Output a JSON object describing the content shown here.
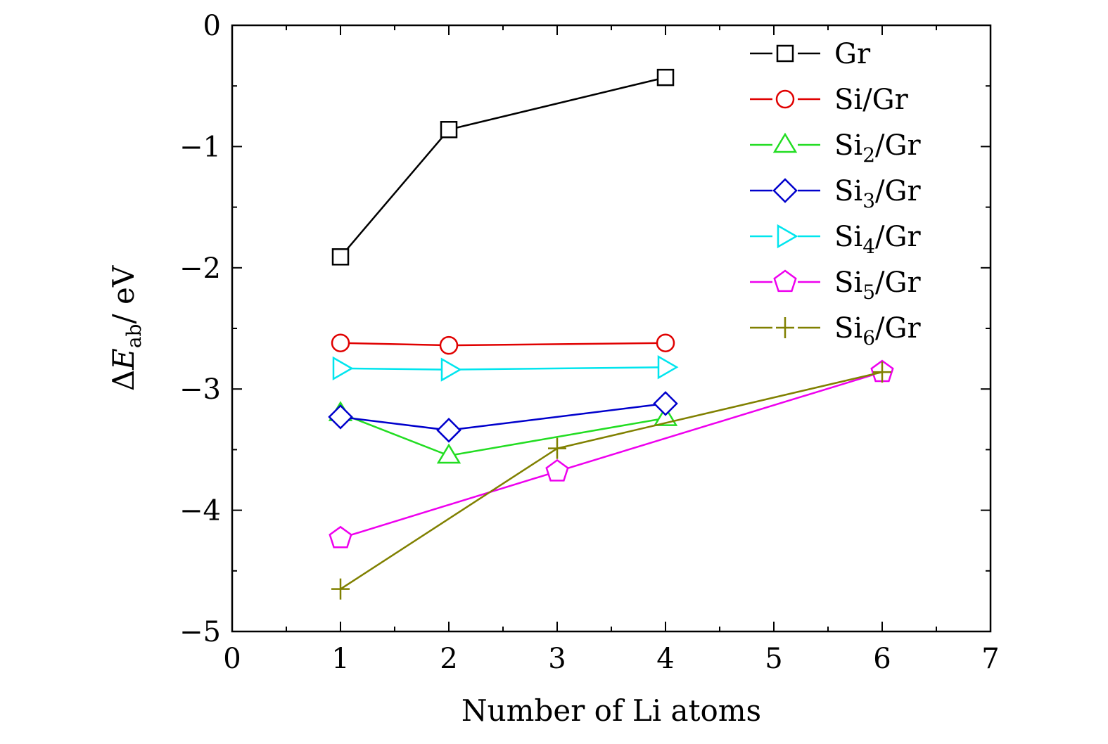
{
  "chart_data": {
    "type": "line",
    "title": "",
    "xlabel": "Number of Li atoms",
    "ylabel": {
      "delta": "Δ",
      "symbol": "E",
      "subscript": "ab",
      "unit": "/ eV"
    },
    "xlim": [
      0,
      7
    ],
    "ylim": [
      -5,
      0
    ],
    "xticks": [
      0,
      1,
      2,
      3,
      4,
      5,
      6,
      7
    ],
    "yticks": [
      0,
      -1,
      -2,
      -3,
      -4,
      -5
    ],
    "xtick_labels": [
      "0",
      "1",
      "2",
      "3",
      "4",
      "5",
      "6",
      "7"
    ],
    "ytick_labels": [
      "0",
      "−1",
      "−2",
      "−3",
      "−4",
      "−5"
    ],
    "legend_position": "top-right",
    "series": [
      {
        "name": "Gr",
        "label_base": "Gr",
        "label_sub": "",
        "label_suffix": "",
        "color": "#000000",
        "marker": "square",
        "x": [
          1,
          2,
          4
        ],
        "y": [
          -1.91,
          -0.86,
          -0.43
        ]
      },
      {
        "name": "Si/Gr",
        "label_base": "Si/Gr",
        "label_sub": "",
        "label_suffix": "",
        "color": "#e00000",
        "marker": "circle",
        "x": [
          1,
          2,
          4
        ],
        "y": [
          -2.62,
          -2.64,
          -2.62
        ]
      },
      {
        "name": "Si2/Gr",
        "label_base": "Si",
        "label_sub": "2",
        "label_suffix": "/Gr",
        "color": "#22dd22",
        "marker": "triangle-up",
        "x": [
          1,
          2,
          4
        ],
        "y": [
          -3.2,
          -3.55,
          -3.24
        ]
      },
      {
        "name": "Si3/Gr",
        "label_base": "Si",
        "label_sub": "3",
        "label_suffix": "/Gr",
        "color": "#0000cc",
        "marker": "diamond",
        "x": [
          1,
          2,
          4
        ],
        "y": [
          -3.23,
          -3.34,
          -3.12
        ]
      },
      {
        "name": "Si4/Gr",
        "label_base": "Si",
        "label_sub": "4",
        "label_suffix": "/Gr",
        "color": "#00e5ee",
        "marker": "triangle-right",
        "x": [
          1,
          2,
          4
        ],
        "y": [
          -2.83,
          -2.84,
          -2.82
        ]
      },
      {
        "name": "Si5/Gr",
        "label_base": "Si",
        "label_sub": "5",
        "label_suffix": "/Gr",
        "color": "#ee00ee",
        "marker": "pentagon",
        "x": [
          1,
          3,
          6
        ],
        "y": [
          -4.23,
          -3.68,
          -2.86
        ]
      },
      {
        "name": "Si6/Gr",
        "label_base": "Si",
        "label_sub": "6",
        "label_suffix": "/Gr",
        "color": "#808000",
        "marker": "plus",
        "x": [
          1,
          3,
          6
        ],
        "y": [
          -4.65,
          -3.49,
          -2.86
        ]
      }
    ]
  }
}
